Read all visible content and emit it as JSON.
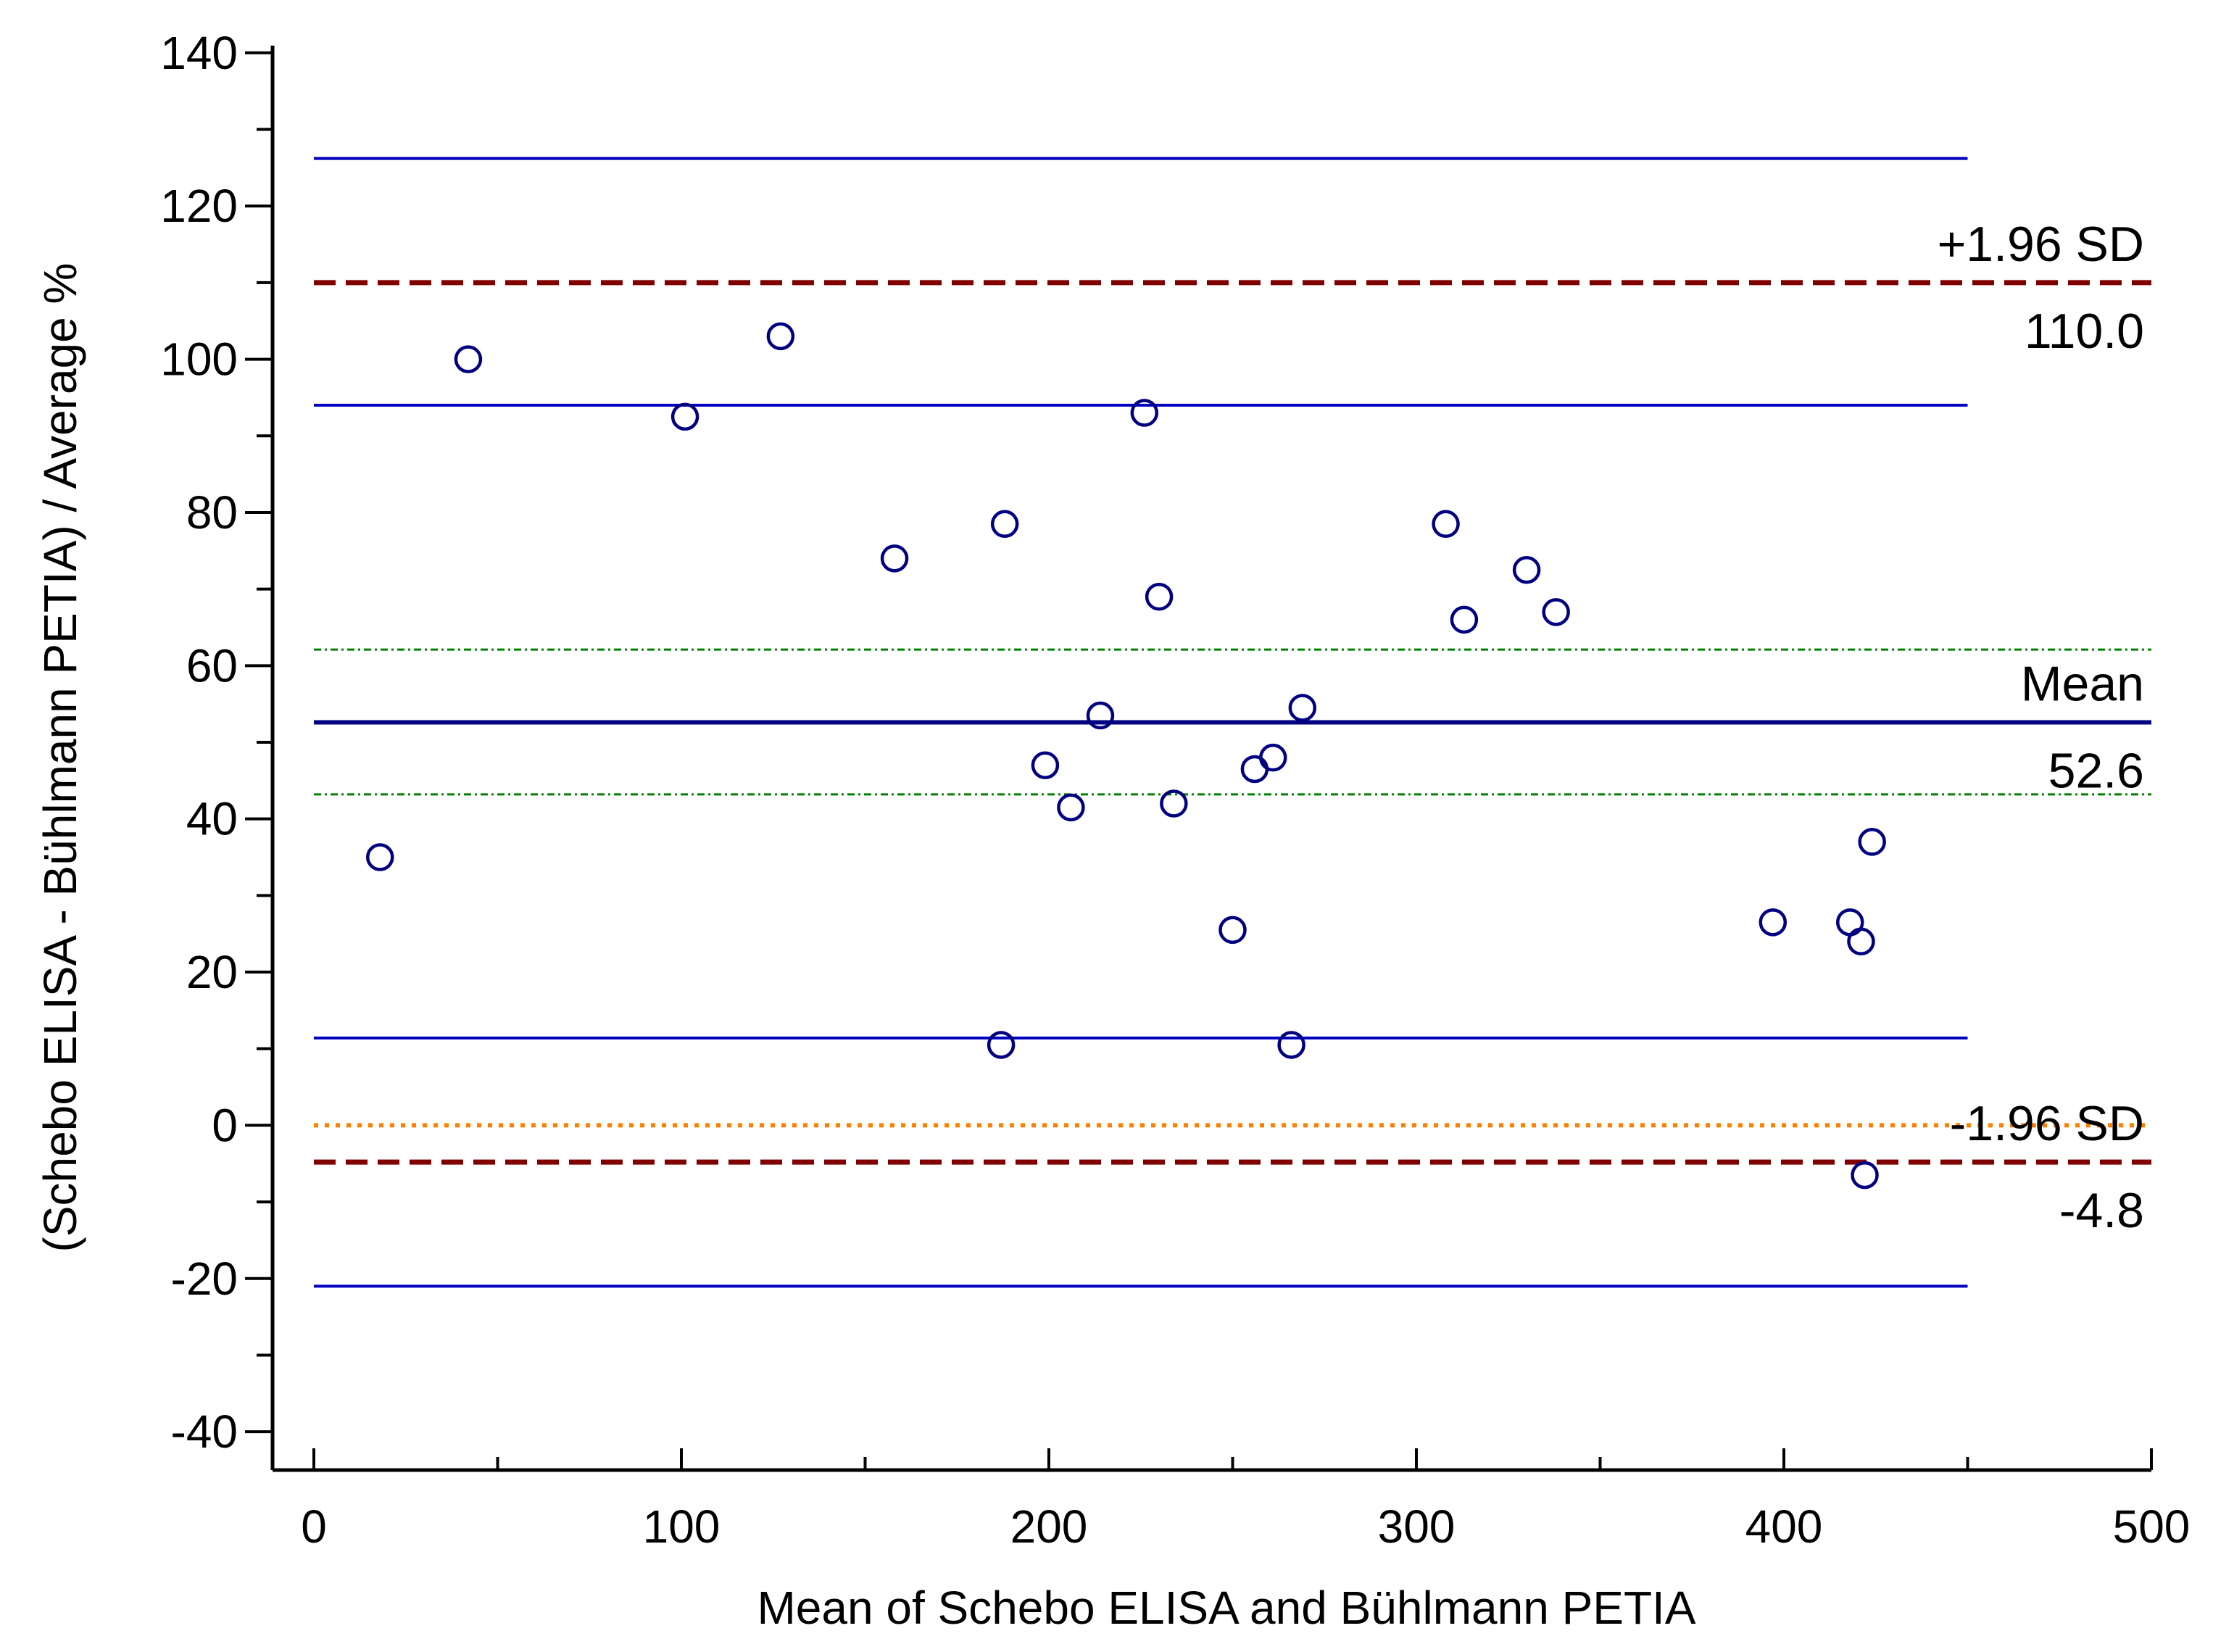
{
  "chart_data": {
    "type": "scatter",
    "title": "",
    "xlabel": "Mean of Schebo ELISA and Bühlmann PETIA",
    "ylabel": "(Schebo ELISA - Bühlmann PETIA) / Average %",
    "xlim": [
      0,
      500
    ],
    "ylim": [
      -45,
      145
    ],
    "x_ticks": [
      0,
      100,
      200,
      300,
      400,
      500
    ],
    "x_tick_labels": [
      "0",
      "100",
      "200",
      "300",
      "400",
      "500"
    ],
    "x_minor_ticks": [
      50,
      150,
      250,
      350,
      450
    ],
    "y_ticks": [
      -40,
      -20,
      0,
      20,
      40,
      60,
      80,
      100,
      120,
      140
    ],
    "y_tick_labels": [
      "-40",
      "-20",
      "0",
      "20",
      "40",
      "60",
      "80",
      "100",
      "120",
      "140"
    ],
    "y_minor_ticks": [
      -30,
      -10,
      10,
      30,
      50,
      70,
      90,
      110,
      130
    ],
    "grid": false,
    "points": [
      {
        "x": 18,
        "y": 35
      },
      {
        "x": 42,
        "y": 100
      },
      {
        "x": 101,
        "y": 92.5
      },
      {
        "x": 127,
        "y": 103
      },
      {
        "x": 158,
        "y": 74
      },
      {
        "x": 187,
        "y": 10.5
      },
      {
        "x": 188,
        "y": 78.5
      },
      {
        "x": 199,
        "y": 47
      },
      {
        "x": 206,
        "y": 41.5
      },
      {
        "x": 214,
        "y": 53.5
      },
      {
        "x": 226,
        "y": 93
      },
      {
        "x": 230,
        "y": 69
      },
      {
        "x": 234,
        "y": 42
      },
      {
        "x": 250,
        "y": 25.5
      },
      {
        "x": 256,
        "y": 46.5
      },
      {
        "x": 261,
        "y": 48
      },
      {
        "x": 266,
        "y": 10.5
      },
      {
        "x": 269,
        "y": 54.5
      },
      {
        "x": 308,
        "y": 78.5
      },
      {
        "x": 313,
        "y": 66
      },
      {
        "x": 330,
        "y": 72.5
      },
      {
        "x": 338,
        "y": 67
      },
      {
        "x": 397,
        "y": 26.5
      },
      {
        "x": 418,
        "y": 26.5
      },
      {
        "x": 421,
        "y": 24
      },
      {
        "x": 422,
        "y": -6.5
      },
      {
        "x": 424,
        "y": 37
      }
    ],
    "reference_lines": [
      {
        "name": "upper-loa",
        "y": 110.0,
        "x_end": 500,
        "style": "dashed",
        "color": "#800000",
        "label": "+1.96 SD",
        "value_label": "110.0"
      },
      {
        "name": "mean",
        "y": 52.6,
        "x_end": 500,
        "style": "solid",
        "color": "#000080",
        "label": "Mean",
        "value_label": "52.6"
      },
      {
        "name": "lower-loa",
        "y": -4.8,
        "x_end": 500,
        "style": "dashed",
        "color": "#800000",
        "label": "-1.96 SD",
        "value_label": "-4.8"
      },
      {
        "name": "zero-line",
        "y": 0,
        "x_end": 500,
        "style": "dotted",
        "color": "#FF8000",
        "label": "",
        "value_label": ""
      },
      {
        "name": "upper-loa-ci-high",
        "y": 126.2,
        "x_end": 450,
        "style": "solid",
        "color": "#0000C0",
        "label": "",
        "value_label": ""
      },
      {
        "name": "upper-loa-ci-low",
        "y": 94.0,
        "x_end": 450,
        "style": "solid",
        "color": "#0000C0",
        "label": "",
        "value_label": ""
      },
      {
        "name": "mean-ci-high",
        "y": 62.1,
        "x_end": 500,
        "style": "dashdot",
        "color": "#008000",
        "label": "",
        "value_label": ""
      },
      {
        "name": "mean-ci-low",
        "y": 43.2,
        "x_end": 500,
        "style": "dashdot",
        "color": "#008000",
        "label": "",
        "value_label": ""
      },
      {
        "name": "lower-loa-ci-high",
        "y": 11.4,
        "x_end": 450,
        "style": "solid",
        "color": "#0000C0",
        "label": "",
        "value_label": ""
      },
      {
        "name": "lower-loa-ci-low",
        "y": -21.0,
        "x_end": 450,
        "style": "solid",
        "color": "#0000C0",
        "label": "",
        "value_label": ""
      }
    ],
    "colors": {
      "points": "#000080",
      "axis": "#000000"
    }
  }
}
